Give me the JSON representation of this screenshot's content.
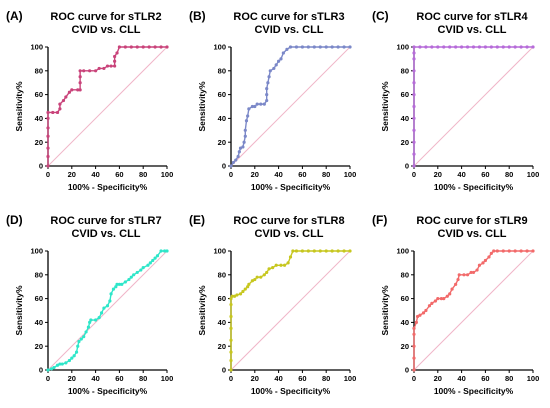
{
  "chart_data": [
    {
      "type": "line",
      "panel_label": "(A)",
      "title": "ROC curve for sTLR2",
      "subtitle": "CVID vs. CLL",
      "xlabel": "100% - Specificity%",
      "ylabel": "Sensitivity%",
      "xlim": [
        0,
        100
      ],
      "ylim": [
        0,
        100
      ],
      "xticks": [
        "0",
        "20",
        "40",
        "60",
        "80",
        "100"
      ],
      "yticks": [
        "0",
        "20",
        "40",
        "60",
        "80",
        "100"
      ],
      "grid": false,
      "reference_line": true,
      "color": "#c9437a",
      "ref_color": "#f0b6c8",
      "points": [
        [
          0,
          0
        ],
        [
          0,
          8
        ],
        [
          0,
          15
        ],
        [
          0,
          25
        ],
        [
          0,
          32
        ],
        [
          0,
          40
        ],
        [
          0,
          45
        ],
        [
          4,
          45
        ],
        [
          8,
          45
        ],
        [
          10,
          48
        ],
        [
          10,
          52
        ],
        [
          13,
          55
        ],
        [
          15,
          58
        ],
        [
          18,
          62
        ],
        [
          20,
          64
        ],
        [
          25,
          64
        ],
        [
          27,
          64
        ],
        [
          27,
          70
        ],
        [
          27,
          75
        ],
        [
          27,
          80
        ],
        [
          30,
          80
        ],
        [
          35,
          80
        ],
        [
          40,
          80
        ],
        [
          43,
          82
        ],
        [
          47,
          82
        ],
        [
          50,
          84
        ],
        [
          53,
          84
        ],
        [
          56,
          84
        ],
        [
          56,
          88
        ],
        [
          56,
          92
        ],
        [
          58,
          95
        ],
        [
          60,
          100
        ],
        [
          65,
          100
        ],
        [
          70,
          100
        ],
        [
          75,
          100
        ],
        [
          80,
          100
        ],
        [
          85,
          100
        ],
        [
          90,
          100
        ],
        [
          95,
          100
        ],
        [
          100,
          100
        ]
      ]
    },
    {
      "type": "line",
      "panel_label": "(B)",
      "title": "ROC curve for sTLR3",
      "subtitle": "CVID vs. CLL",
      "xlabel": "100% - Specificity%",
      "ylabel": "Sensitivity%",
      "xlim": [
        0,
        100
      ],
      "ylim": [
        0,
        100
      ],
      "xticks": [
        "0",
        "20",
        "40",
        "60",
        "80",
        "100"
      ],
      "yticks": [
        "0",
        "20",
        "40",
        "60",
        "80",
        "100"
      ],
      "grid": false,
      "reference_line": true,
      "color": "#7b88c8",
      "ref_color": "#f0b6c8",
      "points": [
        [
          0,
          0
        ],
        [
          2,
          3
        ],
        [
          4,
          5
        ],
        [
          6,
          8
        ],
        [
          7,
          12
        ],
        [
          8,
          15
        ],
        [
          10,
          16
        ],
        [
          11,
          20
        ],
        [
          12,
          25
        ],
        [
          12,
          30
        ],
        [
          13,
          38
        ],
        [
          14,
          42
        ],
        [
          15,
          48
        ],
        [
          18,
          50
        ],
        [
          20,
          50
        ],
        [
          22,
          52
        ],
        [
          25,
          52
        ],
        [
          28,
          52
        ],
        [
          30,
          55
        ],
        [
          30,
          60
        ],
        [
          30,
          65
        ],
        [
          31,
          70
        ],
        [
          32,
          75
        ],
        [
          33,
          80
        ],
        [
          36,
          82
        ],
        [
          38,
          85
        ],
        [
          40,
          88
        ],
        [
          42,
          90
        ],
        [
          44,
          95
        ],
        [
          47,
          98
        ],
        [
          50,
          100
        ],
        [
          55,
          100
        ],
        [
          60,
          100
        ],
        [
          65,
          100
        ],
        [
          70,
          100
        ],
        [
          75,
          100
        ],
        [
          80,
          100
        ],
        [
          85,
          100
        ],
        [
          90,
          100
        ],
        [
          95,
          100
        ],
        [
          100,
          100
        ]
      ]
    },
    {
      "type": "line",
      "panel_label": "(C)",
      "title": "ROC curve for sTLR4",
      "subtitle": "CVID vs. CLL",
      "xlabel": "100% - Specificity%",
      "ylabel": "Sensitivity%",
      "xlim": [
        0,
        100
      ],
      "ylim": [
        0,
        100
      ],
      "xticks": [
        "0",
        "20",
        "40",
        "60",
        "80",
        "100"
      ],
      "yticks": [
        "0",
        "20",
        "40",
        "60",
        "80",
        "100"
      ],
      "grid": false,
      "reference_line": true,
      "color": "#b66bd9",
      "ref_color": "#f0b6c8",
      "points": [
        [
          0,
          0
        ],
        [
          0,
          10
        ],
        [
          0,
          20
        ],
        [
          0,
          30
        ],
        [
          0,
          40
        ],
        [
          0,
          50
        ],
        [
          0,
          60
        ],
        [
          0,
          70
        ],
        [
          0,
          80
        ],
        [
          0,
          90
        ],
        [
          0,
          95
        ],
        [
          0,
          100
        ],
        [
          5,
          100
        ],
        [
          10,
          100
        ],
        [
          15,
          100
        ],
        [
          20,
          100
        ],
        [
          25,
          100
        ],
        [
          30,
          100
        ],
        [
          35,
          100
        ],
        [
          40,
          100
        ],
        [
          45,
          100
        ],
        [
          50,
          100
        ],
        [
          55,
          100
        ],
        [
          60,
          100
        ],
        [
          65,
          100
        ],
        [
          70,
          100
        ],
        [
          75,
          100
        ],
        [
          80,
          100
        ],
        [
          85,
          100
        ],
        [
          90,
          100
        ],
        [
          95,
          100
        ],
        [
          100,
          100
        ]
      ]
    },
    {
      "type": "line",
      "panel_label": "(D)",
      "title": "ROC curve for sTLR7",
      "subtitle": "CVID vs. CLL",
      "xlabel": "100% - Specificity%",
      "ylabel": "Sensitivity%",
      "xlim": [
        0,
        100
      ],
      "ylim": [
        0,
        100
      ],
      "xticks": [
        "0",
        "20",
        "40",
        "60",
        "80",
        "100"
      ],
      "yticks": [
        "0",
        "20",
        "40",
        "60",
        "80",
        "100"
      ],
      "grid": false,
      "reference_line": true,
      "color": "#2ee6c9",
      "ref_color": "#f0b6c8",
      "points": [
        [
          0,
          0
        ],
        [
          3,
          1
        ],
        [
          5,
          2
        ],
        [
          8,
          4
        ],
        [
          10,
          5
        ],
        [
          12,
          5
        ],
        [
          15,
          6
        ],
        [
          18,
          8
        ],
        [
          20,
          10
        ],
        [
          22,
          12
        ],
        [
          24,
          15
        ],
        [
          25,
          20
        ],
        [
          26,
          24
        ],
        [
          28,
          26
        ],
        [
          30,
          28
        ],
        [
          32,
          32
        ],
        [
          34,
          36
        ],
        [
          35,
          40
        ],
        [
          36,
          42
        ],
        [
          40,
          42
        ],
        [
          43,
          44
        ],
        [
          45,
          48
        ],
        [
          47,
          52
        ],
        [
          50,
          54
        ],
        [
          52,
          58
        ],
        [
          53,
          64
        ],
        [
          55,
          68
        ],
        [
          57,
          70
        ],
        [
          58,
          72
        ],
        [
          60,
          72
        ],
        [
          62,
          72
        ],
        [
          65,
          74
        ],
        [
          68,
          76
        ],
        [
          70,
          78
        ],
        [
          72,
          80
        ],
        [
          75,
          82
        ],
        [
          78,
          84
        ],
        [
          80,
          86
        ],
        [
          84,
          88
        ],
        [
          86,
          90
        ],
        [
          88,
          92
        ],
        [
          90,
          94
        ],
        [
          92,
          96
        ],
        [
          95,
          100
        ],
        [
          98,
          100
        ],
        [
          100,
          100
        ]
      ]
    },
    {
      "type": "line",
      "panel_label": "(E)",
      "title": "ROC curve for sTLR8",
      "subtitle": "CVID vs. CLL",
      "xlabel": "100% - Specificity%",
      "ylabel": "Sensitivity%",
      "xlim": [
        0,
        100
      ],
      "ylim": [
        0,
        100
      ],
      "xticks": [
        "0",
        "20",
        "40",
        "60",
        "80",
        "100"
      ],
      "yticks": [
        "0",
        "20",
        "40",
        "60",
        "80",
        "100"
      ],
      "grid": false,
      "reference_line": true,
      "color": "#c7c71f",
      "ref_color": "#f0b6c8",
      "points": [
        [
          0,
          0
        ],
        [
          0,
          8
        ],
        [
          0,
          15
        ],
        [
          0,
          25
        ],
        [
          0,
          35
        ],
        [
          0,
          45
        ],
        [
          0,
          55
        ],
        [
          0,
          60
        ],
        [
          1,
          62
        ],
        [
          3,
          62
        ],
        [
          5,
          63
        ],
        [
          8,
          64
        ],
        [
          10,
          66
        ],
        [
          12,
          68
        ],
        [
          14,
          70
        ],
        [
          15,
          72
        ],
        [
          18,
          75
        ],
        [
          20,
          76
        ],
        [
          22,
          78
        ],
        [
          25,
          78
        ],
        [
          28,
          80
        ],
        [
          30,
          82
        ],
        [
          32,
          85
        ],
        [
          35,
          86
        ],
        [
          38,
          88
        ],
        [
          42,
          88
        ],
        [
          45,
          88
        ],
        [
          48,
          90
        ],
        [
          50,
          95
        ],
        [
          52,
          100
        ],
        [
          55,
          100
        ],
        [
          60,
          100
        ],
        [
          65,
          100
        ],
        [
          70,
          100
        ],
        [
          75,
          100
        ],
        [
          80,
          100
        ],
        [
          85,
          100
        ],
        [
          90,
          100
        ],
        [
          95,
          100
        ],
        [
          100,
          100
        ]
      ]
    },
    {
      "type": "line",
      "panel_label": "(F)",
      "title": "ROC curve for sTLR9",
      "subtitle": "CVID vs. CLL",
      "xlabel": "100% - Specificity%",
      "ylabel": "Sensitivity%",
      "xlim": [
        0,
        100
      ],
      "ylim": [
        0,
        100
      ],
      "xticks": [
        "0",
        "20",
        "40",
        "60",
        "80",
        "100"
      ],
      "yticks": [
        "0",
        "20",
        "40",
        "60",
        "80",
        "100"
      ],
      "grid": false,
      "reference_line": true,
      "color": "#f26a6a",
      "ref_color": "#f0b6c8",
      "points": [
        [
          0,
          0
        ],
        [
          0,
          10
        ],
        [
          0,
          20
        ],
        [
          0,
          30
        ],
        [
          0,
          35
        ],
        [
          2,
          40
        ],
        [
          3,
          45
        ],
        [
          5,
          46
        ],
        [
          8,
          48
        ],
        [
          10,
          50
        ],
        [
          13,
          54
        ],
        [
          15,
          56
        ],
        [
          18,
          58
        ],
        [
          20,
          60
        ],
        [
          23,
          60
        ],
        [
          25,
          60
        ],
        [
          28,
          62
        ],
        [
          30,
          64
        ],
        [
          32,
          68
        ],
        [
          35,
          72
        ],
        [
          37,
          76
        ],
        [
          38,
          80
        ],
        [
          42,
          80
        ],
        [
          45,
          80
        ],
        [
          48,
          82
        ],
        [
          50,
          82
        ],
        [
          53,
          84
        ],
        [
          55,
          88
        ],
        [
          58,
          90
        ],
        [
          60,
          92
        ],
        [
          63,
          95
        ],
        [
          65,
          98
        ],
        [
          67,
          100
        ],
        [
          70,
          100
        ],
        [
          75,
          100
        ],
        [
          80,
          100
        ],
        [
          85,
          100
        ],
        [
          90,
          100
        ],
        [
          95,
          100
        ],
        [
          100,
          100
        ]
      ]
    }
  ]
}
